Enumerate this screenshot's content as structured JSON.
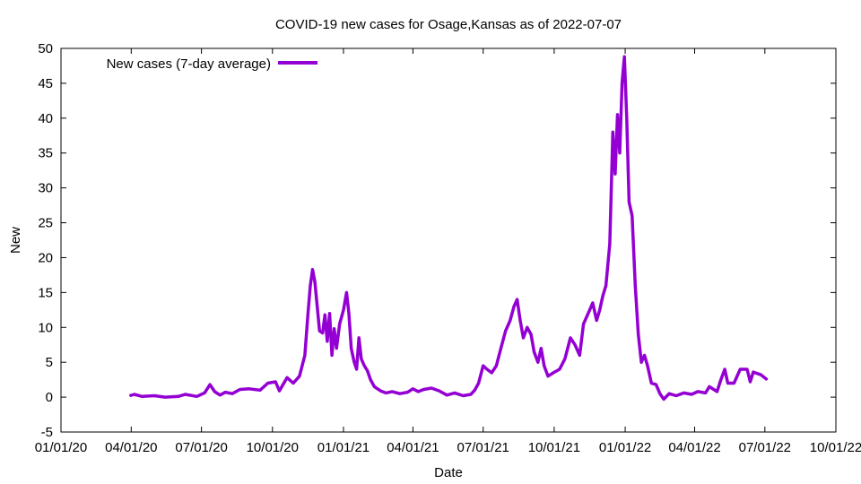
{
  "chart_data": {
    "type": "line",
    "title": "COVID-19 new cases for Osage,Kansas as of 2022-07-07",
    "xlabel": "Date",
    "ylabel": "New",
    "ylim": [
      -5,
      50
    ],
    "y_ticks": [
      "-5",
      "0",
      "5",
      "10",
      "15",
      "20",
      "25",
      "30",
      "35",
      "40",
      "45",
      "50"
    ],
    "x_ticks": [
      {
        "date": "2020-01-01",
        "label": "01/01/20"
      },
      {
        "date": "2020-04-01",
        "label": "04/01/20"
      },
      {
        "date": "2020-07-01",
        "label": "07/01/20"
      },
      {
        "date": "2020-10-01",
        "label": "10/01/20"
      },
      {
        "date": "2021-01-01",
        "label": "01/01/21"
      },
      {
        "date": "2021-04-01",
        "label": "04/01/21"
      },
      {
        "date": "2021-07-01",
        "label": "07/01/21"
      },
      {
        "date": "2021-10-01",
        "label": "10/01/21"
      },
      {
        "date": "2022-01-01",
        "label": "01/01/22"
      },
      {
        "date": "2022-04-01",
        "label": "04/01/22"
      },
      {
        "date": "2022-07-01",
        "label": "07/01/22"
      },
      {
        "date": "2022-10-01",
        "label": "10/01/22"
      }
    ],
    "grid": false,
    "legend_position": "top-left",
    "series": [
      {
        "name": "New cases (7-day average)",
        "color": "#9400d3",
        "points": [
          [
            "2020-03-30",
            0.2
          ],
          [
            "2020-04-05",
            0.4
          ],
          [
            "2020-04-15",
            0.1
          ],
          [
            "2020-05-01",
            0.2
          ],
          [
            "2020-05-15",
            0.0
          ],
          [
            "2020-06-01",
            0.1
          ],
          [
            "2020-06-10",
            0.4
          ],
          [
            "2020-06-25",
            0.1
          ],
          [
            "2020-07-05",
            0.6
          ],
          [
            "2020-07-12",
            1.8
          ],
          [
            "2020-07-18",
            0.8
          ],
          [
            "2020-07-25",
            0.3
          ],
          [
            "2020-08-01",
            0.7
          ],
          [
            "2020-08-10",
            0.5
          ],
          [
            "2020-08-20",
            1.1
          ],
          [
            "2020-09-01",
            1.2
          ],
          [
            "2020-09-15",
            1.0
          ],
          [
            "2020-09-25",
            2.0
          ],
          [
            "2020-10-05",
            2.2
          ],
          [
            "2020-10-10",
            0.9
          ],
          [
            "2020-10-20",
            2.8
          ],
          [
            "2020-10-28",
            2.0
          ],
          [
            "2020-11-05",
            3.0
          ],
          [
            "2020-11-12",
            6.0
          ],
          [
            "2020-11-16",
            12.0
          ],
          [
            "2020-11-19",
            16.0
          ],
          [
            "2020-11-22",
            18.3
          ],
          [
            "2020-11-25",
            16.5
          ],
          [
            "2020-11-28",
            13.0
          ],
          [
            "2020-12-01",
            9.5
          ],
          [
            "2020-12-05",
            9.2
          ],
          [
            "2020-12-08",
            11.8
          ],
          [
            "2020-12-11",
            8.0
          ],
          [
            "2020-12-14",
            12.0
          ],
          [
            "2020-12-17",
            6.0
          ],
          [
            "2020-12-20",
            9.8
          ],
          [
            "2020-12-23",
            7.0
          ],
          [
            "2020-12-27",
            10.5
          ],
          [
            "2021-01-01",
            12.5
          ],
          [
            "2021-01-05",
            15.0
          ],
          [
            "2021-01-08",
            12.0
          ],
          [
            "2021-01-11",
            7.0
          ],
          [
            "2021-01-15",
            5.0
          ],
          [
            "2021-01-18",
            4.0
          ],
          [
            "2021-01-21",
            8.5
          ],
          [
            "2021-01-24",
            5.5
          ],
          [
            "2021-01-28",
            4.5
          ],
          [
            "2021-02-01",
            3.8
          ],
          [
            "2021-02-05",
            2.5
          ],
          [
            "2021-02-10",
            1.5
          ],
          [
            "2021-02-18",
            0.9
          ],
          [
            "2021-02-25",
            0.6
          ],
          [
            "2021-03-05",
            0.8
          ],
          [
            "2021-03-15",
            0.5
          ],
          [
            "2021-03-25",
            0.7
          ],
          [
            "2021-04-01",
            1.2
          ],
          [
            "2021-04-08",
            0.8
          ],
          [
            "2021-04-15",
            1.1
          ],
          [
            "2021-04-25",
            1.3
          ],
          [
            "2021-05-05",
            0.9
          ],
          [
            "2021-05-15",
            0.3
          ],
          [
            "2021-05-25",
            0.6
          ],
          [
            "2021-06-05",
            0.2
          ],
          [
            "2021-06-15",
            0.4
          ],
          [
            "2021-06-20",
            1.0
          ],
          [
            "2021-06-25",
            2.0
          ],
          [
            "2021-07-01",
            4.5
          ],
          [
            "2021-07-06",
            4.0
          ],
          [
            "2021-07-12",
            3.5
          ],
          [
            "2021-07-18",
            4.5
          ],
          [
            "2021-07-24",
            7.0
          ],
          [
            "2021-07-30",
            9.5
          ],
          [
            "2021-08-05",
            11.0
          ],
          [
            "2021-08-10",
            13.0
          ],
          [
            "2021-08-14",
            14.0
          ],
          [
            "2021-08-18",
            11.0
          ],
          [
            "2021-08-22",
            8.5
          ],
          [
            "2021-08-27",
            10.0
          ],
          [
            "2021-09-01",
            9.0
          ],
          [
            "2021-09-05",
            6.5
          ],
          [
            "2021-09-10",
            5.0
          ],
          [
            "2021-09-14",
            7.0
          ],
          [
            "2021-09-18",
            4.5
          ],
          [
            "2021-09-23",
            3.0
          ],
          [
            "2021-09-30",
            3.5
          ],
          [
            "2021-10-08",
            4.0
          ],
          [
            "2021-10-15",
            5.5
          ],
          [
            "2021-10-22",
            8.5
          ],
          [
            "2021-10-28",
            7.5
          ],
          [
            "2021-11-03",
            6.0
          ],
          [
            "2021-11-08",
            10.5
          ],
          [
            "2021-11-14",
            12.0
          ],
          [
            "2021-11-20",
            13.5
          ],
          [
            "2021-11-25",
            11.0
          ],
          [
            "2021-11-29",
            12.5
          ],
          [
            "2021-12-03",
            14.5
          ],
          [
            "2021-12-07",
            16.0
          ],
          [
            "2021-12-12",
            22.0
          ],
          [
            "2021-12-16",
            38.0
          ],
          [
            "2021-12-19",
            32.0
          ],
          [
            "2021-12-22",
            40.5
          ],
          [
            "2021-12-25",
            35.0
          ],
          [
            "2021-12-28",
            45.0
          ],
          [
            "2021-12-31",
            48.8
          ],
          [
            "2022-01-03",
            40.0
          ],
          [
            "2022-01-06",
            28.0
          ],
          [
            "2022-01-10",
            26.0
          ],
          [
            "2022-01-14",
            16.0
          ],
          [
            "2022-01-18",
            9.0
          ],
          [
            "2022-01-22",
            5.0
          ],
          [
            "2022-01-26",
            6.0
          ],
          [
            "2022-01-30",
            4.5
          ],
          [
            "2022-02-04",
            2.0
          ],
          [
            "2022-02-10",
            1.8
          ],
          [
            "2022-02-15",
            0.5
          ],
          [
            "2022-02-20",
            -0.3
          ],
          [
            "2022-02-27",
            0.5
          ],
          [
            "2022-03-08",
            0.2
          ],
          [
            "2022-03-18",
            0.6
          ],
          [
            "2022-03-28",
            0.4
          ],
          [
            "2022-04-05",
            0.8
          ],
          [
            "2022-04-15",
            0.6
          ],
          [
            "2022-04-20",
            1.5
          ],
          [
            "2022-04-30",
            0.8
          ],
          [
            "2022-05-05",
            2.5
          ],
          [
            "2022-05-10",
            4.0
          ],
          [
            "2022-05-14",
            2.0
          ],
          [
            "2022-05-22",
            2.0
          ],
          [
            "2022-05-30",
            4.0
          ],
          [
            "2022-06-08",
            4.0
          ],
          [
            "2022-06-12",
            2.2
          ],
          [
            "2022-06-16",
            3.6
          ],
          [
            "2022-06-26",
            3.2
          ],
          [
            "2022-07-04",
            2.5
          ]
        ]
      }
    ]
  }
}
